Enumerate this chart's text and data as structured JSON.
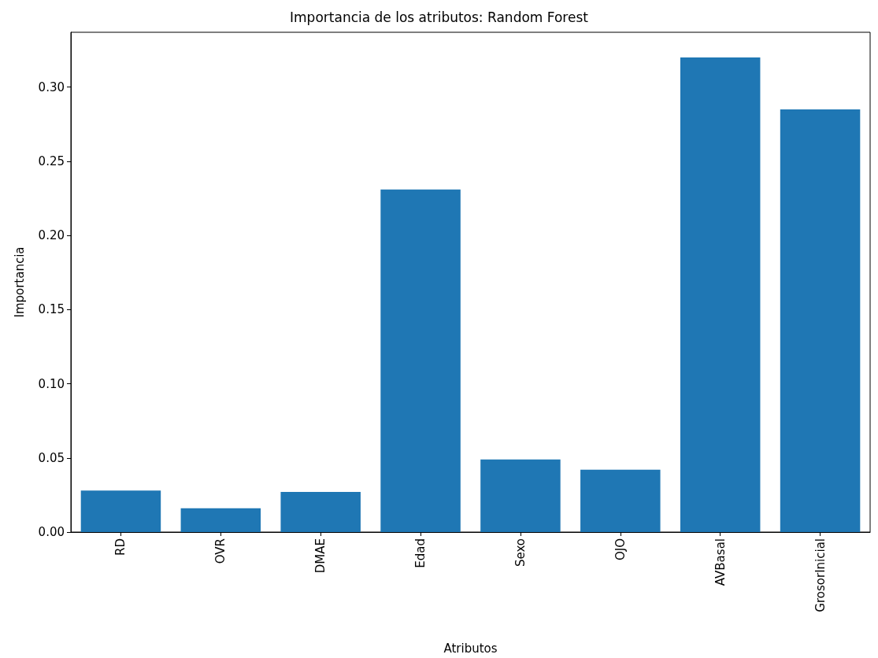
{
  "chart_data": {
    "type": "bar",
    "title": "Importancia de los atributos: Random Forest",
    "xlabel": "Atributos",
    "ylabel": "Importancia",
    "categories": [
      "RD",
      "OVR",
      "DMAE",
      "Edad",
      "Sexo",
      "OJO",
      "AVBasal",
      "GrosorInicial"
    ],
    "values": [
      0.028,
      0.016,
      0.027,
      0.231,
      0.049,
      0.042,
      0.32,
      0.285
    ],
    "color": "#1f77b4",
    "ylim": [
      0,
      0.337
    ],
    "yticks": [
      {
        "value": 0,
        "label": "0.00"
      },
      {
        "value": 0.05,
        "label": "0.05"
      },
      {
        "value": 0.1,
        "label": "0.10"
      },
      {
        "value": 0.15,
        "label": "0.15"
      },
      {
        "value": 0.2,
        "label": "0.20"
      },
      {
        "value": 0.25,
        "label": "0.25"
      },
      {
        "value": 0.3,
        "label": "0.30"
      }
    ],
    "grid": false
  }
}
